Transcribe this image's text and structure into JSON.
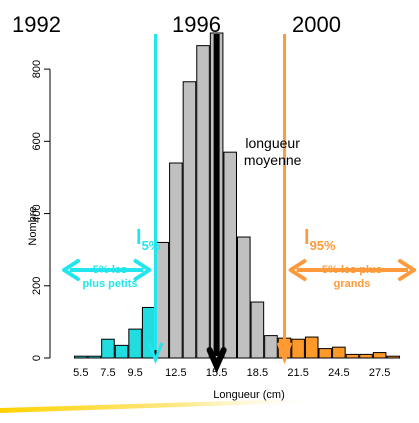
{
  "chart_data": {
    "type": "bar",
    "title": "",
    "xlabel": "Longueur (cm)",
    "ylabel": "Nombre",
    "ylim": [
      0,
      900
    ],
    "yticks": [
      0,
      200,
      400,
      600,
      800
    ],
    "xtick_labels": [
      "5.5",
      "7.5",
      "9.5",
      "12.5",
      "15.5",
      "18.5",
      "21.5",
      "24.5",
      "27.5"
    ],
    "xtick_positions": [
      5.5,
      7.5,
      9.5,
      12.5,
      15.5,
      18.5,
      21.5,
      24.5,
      27.5
    ],
    "bin_width": 1,
    "bins": [
      {
        "x": 5.5,
        "value": 5,
        "group": "small"
      },
      {
        "x": 6.5,
        "value": 5,
        "group": "small"
      },
      {
        "x": 7.5,
        "value": 52,
        "group": "small"
      },
      {
        "x": 8.5,
        "value": 35,
        "group": "small"
      },
      {
        "x": 9.5,
        "value": 80,
        "group": "small"
      },
      {
        "x": 10.5,
        "value": 140,
        "group": "small"
      },
      {
        "x": 11.5,
        "value": 320,
        "group": "middle"
      },
      {
        "x": 12.5,
        "value": 540,
        "group": "middle"
      },
      {
        "x": 13.5,
        "value": 765,
        "group": "middle"
      },
      {
        "x": 14.5,
        "value": 865,
        "group": "middle"
      },
      {
        "x": 15.5,
        "value": 900,
        "group": "middle"
      },
      {
        "x": 16.5,
        "value": 570,
        "group": "middle"
      },
      {
        "x": 17.5,
        "value": 335,
        "group": "middle"
      },
      {
        "x": 18.5,
        "value": 155,
        "group": "middle"
      },
      {
        "x": 19.5,
        "value": 62,
        "group": "middle"
      },
      {
        "x": 20.5,
        "value": 55,
        "group": "large"
      },
      {
        "x": 21.5,
        "value": 52,
        "group": "large"
      },
      {
        "x": 22.5,
        "value": 58,
        "group": "large"
      },
      {
        "x": 23.5,
        "value": 26,
        "group": "large"
      },
      {
        "x": 24.5,
        "value": 30,
        "group": "large"
      },
      {
        "x": 25.5,
        "value": 10,
        "group": "large"
      },
      {
        "x": 26.5,
        "value": 10,
        "group": "large"
      },
      {
        "x": 27.5,
        "value": 15,
        "group": "large"
      },
      {
        "x": 28.5,
        "value": 5,
        "group": "large"
      }
    ],
    "colors": {
      "small": "#22dde0",
      "middle": "#c0c0c0",
      "large": "#ff9a2a",
      "edge": "#000000"
    },
    "markers": [
      {
        "id": "l5",
        "x": 11.0,
        "color": "#22e5ee",
        "label_base": "l",
        "label_sub": "5%",
        "side_label": "5% les plus petits",
        "side_label_lines": [
          "5% les",
          "plus petits"
        ]
      },
      {
        "id": "mean",
        "x": 15.5,
        "color": "#000000",
        "label_lines": [
          "longueur",
          "moyenne"
        ]
      },
      {
        "id": "l95",
        "x": 20.5,
        "color": "#ff9a3c",
        "label_base": "l",
        "label_sub": "95%",
        "side_label": "5% les plus grands",
        "side_label_lines": [
          "5% les plus",
          "grands"
        ]
      }
    ],
    "annotations": {
      "years": [
        {
          "label": "1992"
        },
        {
          "label": "1996"
        },
        {
          "label": "2000"
        }
      ]
    }
  }
}
